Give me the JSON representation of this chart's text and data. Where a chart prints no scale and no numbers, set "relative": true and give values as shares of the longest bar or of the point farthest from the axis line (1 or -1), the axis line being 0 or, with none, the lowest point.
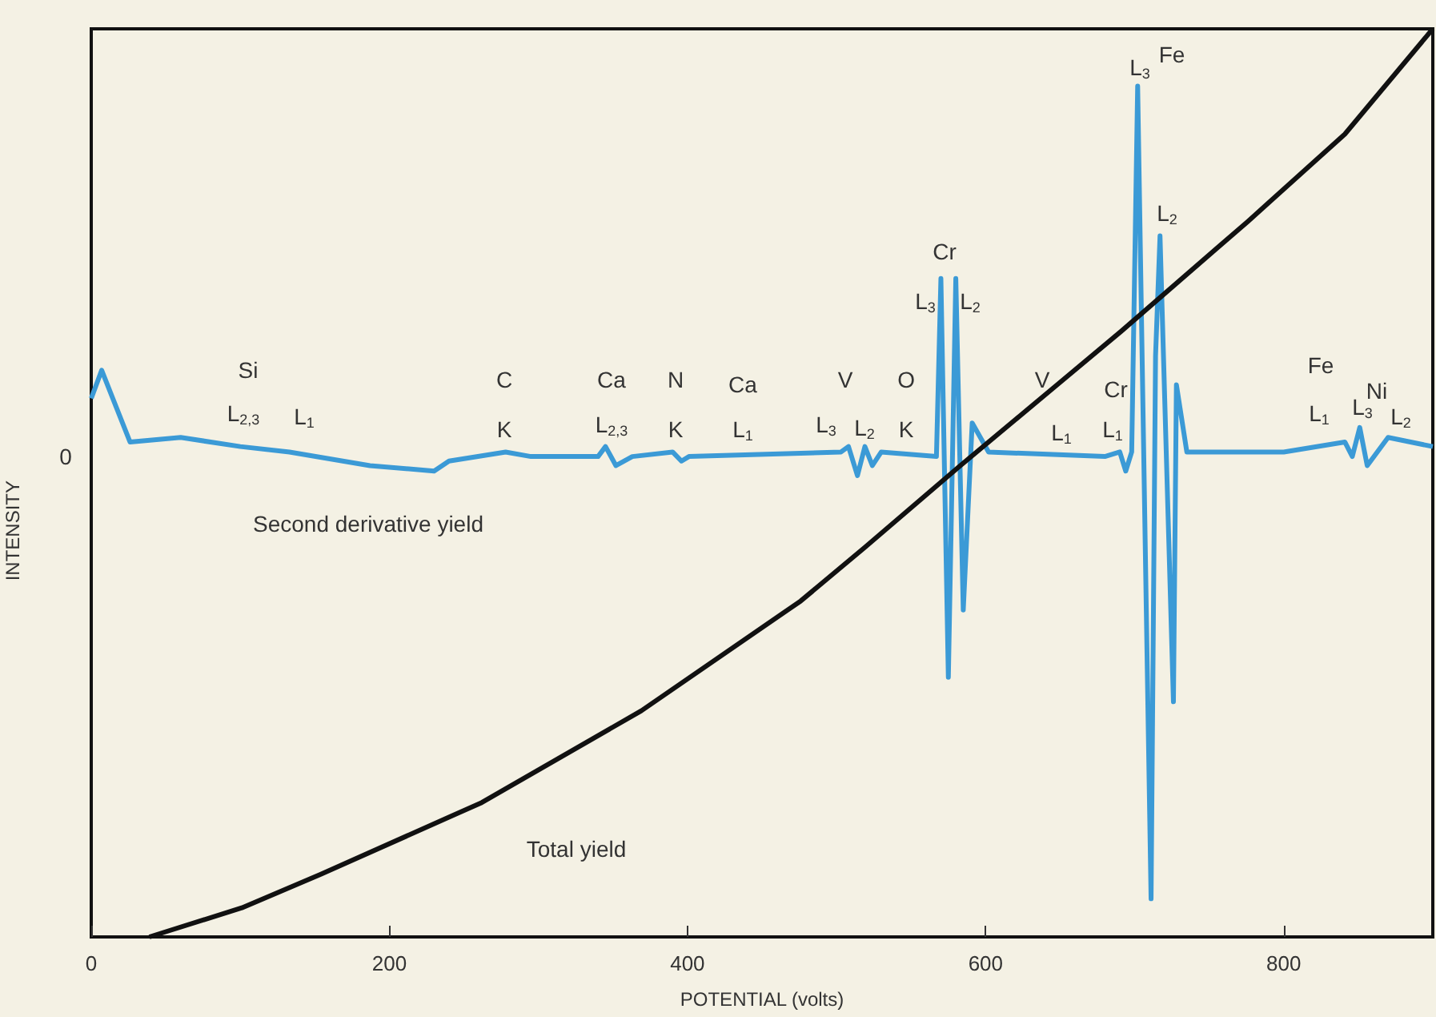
{
  "chart_data": {
    "type": "line",
    "relative": true,
    "xlabel": "POTENTIAL (volts)",
    "ylabel": "INTENSITY",
    "xlim": [
      0,
      900
    ],
    "xticks": [
      0,
      200,
      400,
      600,
      800
    ],
    "series": [
      {
        "color": "#3b9ad6",
        "x": [
          0,
          7,
          26,
          60,
          100,
          133,
          187,
          230,
          240,
          278,
          295,
          340,
          345,
          352,
          363,
          390,
          396,
          401,
          503,
          508,
          514,
          519,
          524,
          530,
          567,
          570,
          575,
          580,
          585,
          591,
          602,
          680,
          690,
          694,
          698,
          702,
          711,
          714,
          717,
          726,
          728,
          735,
          800,
          841,
          846,
          851,
          856,
          870,
          900
        ],
        "values": [
          0.593,
          0.624,
          0.545,
          0.55,
          0.54,
          0.534,
          0.519,
          0.513,
          0.524,
          0.534,
          0.529,
          0.529,
          0.54,
          0.519,
          0.529,
          0.534,
          0.524,
          0.529,
          0.534,
          0.54,
          0.508,
          0.54,
          0.519,
          0.534,
          0.529,
          0.725,
          0.286,
          0.725,
          0.36,
          0.566,
          0.534,
          0.529,
          0.534,
          0.513,
          0.534,
          0.937,
          0.042,
          0.64,
          0.772,
          0.259,
          0.608,
          0.534,
          0.534,
          0.545,
          0.529,
          0.561,
          0.519,
          0.55,
          0.54
        ]
      },
      {
        "color": "#111111",
        "x": [
          39,
          101,
          154,
          262,
          369,
          476,
          519,
          583,
          648,
          691,
          776,
          841,
          900
        ],
        "values": [
          0,
          0.032,
          0.069,
          0.148,
          0.249,
          0.37,
          0.429,
          0.519,
          0.608,
          0.667,
          0.788,
          0.884,
          1
        ]
      }
    ],
    "annotations": [
      "0",
      "Si",
      "L$_{2,3}$",
      "L$_{1}$",
      "C",
      "K",
      "Ca",
      "L$_{2,3}$",
      "N",
      "K",
      "Ca",
      "L$_{1}$",
      "V",
      "L$_{3}$",
      "L$_{2}$",
      "O",
      "K",
      "Cr",
      "L$_{3}$",
      "L$_{2}$",
      "V",
      "L$_{1}$",
      "Cr",
      "L$_{1}$",
      "L$_{3}$",
      "Fe",
      "L$_{2}$",
      "Fe",
      "Ni",
      "L$_{1}$",
      "L$_{3}$",
      "L$_{2}$",
      "Second derivative yield",
      "Total yield"
    ]
  }
}
